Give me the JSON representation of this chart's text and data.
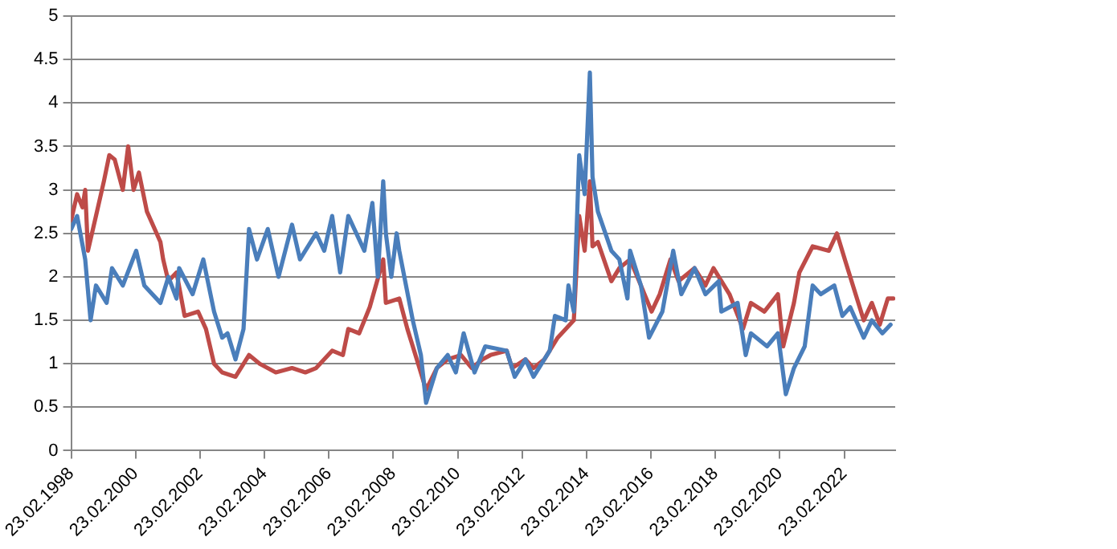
{
  "chart_data": {
    "type": "line",
    "xlim": [
      "1998-02-23",
      "2023-09-23"
    ],
    "xticks": [
      {
        "value": "1998-02-23",
        "label": "23.02.1998"
      },
      {
        "value": "2000-02-23",
        "label": "23.02.2000"
      },
      {
        "value": "2002-02-23",
        "label": "23.02.2002"
      },
      {
        "value": "2004-02-23",
        "label": "23.02.2004"
      },
      {
        "value": "2006-02-23",
        "label": "23.02.2006"
      },
      {
        "value": "2008-02-23",
        "label": "23.02.2008"
      },
      {
        "value": "2010-02-23",
        "label": "23.02.2010"
      },
      {
        "value": "2012-02-23",
        "label": "23.02.2012"
      },
      {
        "value": "2014-02-23",
        "label": "23.02.2014"
      },
      {
        "value": "2016-02-23",
        "label": "23.02.2016"
      },
      {
        "value": "2018-02-23",
        "label": "23.02.2018"
      },
      {
        "value": "2020-02-23",
        "label": "23.02.2020"
      },
      {
        "value": "2022-02-23",
        "label": "23.02.2022"
      }
    ],
    "ylim": [
      0,
      5
    ],
    "yticks": [
      0,
      0.5,
      1,
      1.5,
      2,
      2.5,
      3,
      3.5,
      4,
      4.5,
      5
    ],
    "grid": "y",
    "legend": false,
    "marker": "none",
    "line_style": "solid",
    "series": [
      {
        "color": "#4a7ebb",
        "x": [
          "1998-02-23",
          "1998-05",
          "1998-08",
          "1998-10",
          "1998-12",
          "1999-04",
          "1999-06",
          "1999-10",
          "2000-03",
          "2000-06",
          "2000-12",
          "2001-03",
          "2001-06",
          "2001-07",
          "2001-12",
          "2002-04",
          "2002-08",
          "2002-11",
          "2003-01",
          "2003-04",
          "2003-07",
          "2003-09",
          "2003-12",
          "2004-04",
          "2004-08",
          "2005-01",
          "2005-04",
          "2005-10",
          "2006-01",
          "2006-04",
          "2006-07",
          "2006-10",
          "2007-04",
          "2007-07",
          "2007-09",
          "2007-11",
          "2007-12",
          "2008-02",
          "2008-04",
          "2008-05",
          "2008-10",
          "2009-01",
          "2009-03",
          "2009-07",
          "2009-11",
          "2010-02",
          "2010-05",
          "2010-09",
          "2011-01",
          "2011-09",
          "2011-12",
          "2012-04",
          "2012-07",
          "2013-01",
          "2013-03",
          "2013-07",
          "2013-08",
          "2013-10",
          "2013-12",
          "2014-02",
          "2014-04",
          "2014-05",
          "2014-07",
          "2014-12",
          "2015-03",
          "2015-06",
          "2015-07",
          "2015-11",
          "2016-02",
          "2016-07",
          "2016-11",
          "2017-02",
          "2017-07",
          "2017-11",
          "2018-04",
          "2018-05",
          "2018-11",
          "2019-02",
          "2019-04",
          "2019-10",
          "2020-02",
          "2020-05",
          "2020-08",
          "2020-12",
          "2021-03",
          "2021-06",
          "2021-11",
          "2022-02",
          "2022-05",
          "2022-10",
          "2023-01",
          "2023-05",
          "2023-08"
        ],
        "values": [
          2.55,
          2.7,
          2.2,
          1.5,
          1.9,
          1.7,
          2.1,
          1.9,
          2.3,
          1.9,
          1.7,
          2.0,
          1.75,
          2.1,
          1.8,
          2.2,
          1.6,
          1.3,
          1.35,
          1.05,
          1.4,
          2.55,
          2.2,
          2.55,
          2.0,
          2.6,
          2.2,
          2.5,
          2.3,
          2.7,
          2.05,
          2.7,
          2.3,
          2.85,
          2.0,
          3.1,
          2.5,
          2.0,
          2.5,
          2.3,
          1.5,
          1.1,
          0.55,
          0.95,
          1.1,
          0.9,
          1.35,
          0.9,
          1.2,
          1.15,
          0.85,
          1.05,
          0.85,
          1.15,
          1.55,
          1.5,
          1.9,
          1.6,
          3.4,
          2.95,
          4.35,
          3.15,
          2.75,
          2.3,
          2.2,
          1.75,
          2.3,
          1.9,
          1.3,
          1.6,
          2.3,
          1.8,
          2.1,
          1.8,
          1.95,
          1.6,
          1.7,
          1.1,
          1.35,
          1.2,
          1.35,
          0.65,
          0.95,
          1.2,
          1.9,
          1.8,
          1.9,
          1.55,
          1.65,
          1.3,
          1.5,
          1.35,
          1.45
        ]
      },
      {
        "color": "#be4b48",
        "x": [
          "1998-02-23",
          "1998-05",
          "1998-07",
          "1998-08",
          "1998-09",
          "1998-12",
          "1999-03",
          "1999-05",
          "1999-07",
          "1999-10",
          "1999-12",
          "2000-02",
          "2000-04",
          "2000-07",
          "2000-12",
          "2001-01",
          "2001-03",
          "2001-06",
          "2001-09",
          "2002-02",
          "2002-05",
          "2002-08",
          "2002-11",
          "2003-04",
          "2003-09",
          "2004-01",
          "2004-07",
          "2005-01",
          "2005-06",
          "2005-10",
          "2006-04",
          "2006-08",
          "2006-10",
          "2007-02",
          "2007-06",
          "2007-11",
          "2007-12",
          "2008-05",
          "2008-08",
          "2008-12",
          "2009-03",
          "2009-07",
          "2009-11",
          "2010-04",
          "2010-08",
          "2010-12",
          "2011-03",
          "2011-09",
          "2011-11",
          "2012-04",
          "2012-07",
          "2012-11",
          "2013-04",
          "2013-10",
          "2013-12",
          "2014-02",
          "2014-04",
          "2014-05",
          "2014-07",
          "2014-12",
          "2015-03",
          "2015-07",
          "2015-11",
          "2016-03",
          "2016-06",
          "2016-10",
          "2017-01",
          "2017-07",
          "2017-11",
          "2018-02",
          "2018-08",
          "2019-01",
          "2019-04",
          "2019-09",
          "2020-02",
          "2020-04",
          "2020-08",
          "2020-10",
          "2021-03",
          "2021-09",
          "2021-12",
          "2022-03",
          "2022-07",
          "2022-10",
          "2023-01",
          "2023-04",
          "2023-07",
          "2023-09"
        ],
        "values": [
          2.65,
          2.95,
          2.8,
          3.0,
          2.3,
          2.7,
          3.1,
          3.4,
          3.35,
          3.0,
          3.5,
          3.0,
          3.2,
          2.75,
          2.4,
          2.2,
          1.95,
          2.05,
          1.55,
          1.6,
          1.4,
          1.0,
          0.9,
          0.85,
          1.1,
          1.0,
          0.9,
          0.95,
          0.9,
          0.95,
          1.15,
          1.1,
          1.4,
          1.35,
          1.65,
          2.2,
          1.7,
          1.75,
          1.4,
          1.0,
          0.7,
          0.95,
          1.05,
          1.1,
          0.95,
          1.05,
          1.1,
          1.15,
          0.95,
          1.05,
          0.95,
          1.05,
          1.3,
          1.5,
          2.7,
          2.3,
          3.1,
          2.35,
          2.4,
          1.95,
          2.1,
          2.2,
          1.9,
          1.6,
          1.8,
          2.2,
          1.95,
          2.1,
          1.9,
          2.1,
          1.8,
          1.4,
          1.7,
          1.6,
          1.8,
          1.2,
          1.7,
          2.05,
          2.35,
          2.3,
          2.5,
          2.2,
          1.8,
          1.5,
          1.7,
          1.45,
          1.75,
          1.75
        ]
      }
    ]
  }
}
